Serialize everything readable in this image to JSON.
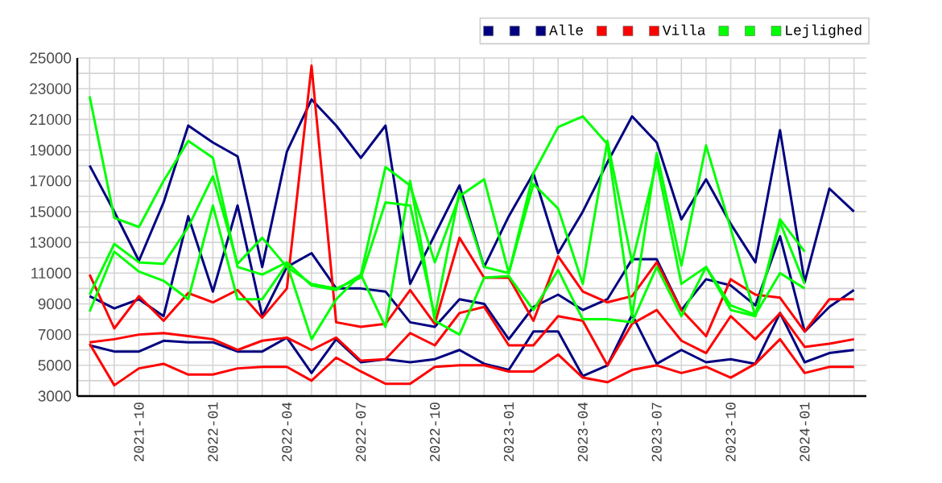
{
  "chart_data": {
    "type": "line",
    "x": [
      "2021-08",
      "2021-09",
      "2021-10",
      "2021-11",
      "2021-12",
      "2022-01",
      "2022-02",
      "2022-03",
      "2022-04",
      "2022-05",
      "2022-06",
      "2022-07",
      "2022-08",
      "2022-09",
      "2022-10",
      "2022-11",
      "2022-12",
      "2023-01",
      "2023-02",
      "2023-03",
      "2023-04",
      "2023-05",
      "2023-06",
      "2023-07",
      "2023-08",
      "2023-09",
      "2023-10",
      "2023-11",
      "2023-12",
      "2024-01",
      "2024-02",
      "2024-03"
    ],
    "series": [
      {
        "color": "#000080",
        "values": [
          18000,
          15000,
          11800,
          15600,
          20600,
          19500,
          18600,
          11400,
          18900,
          22300,
          20600,
          18500,
          20600,
          10300,
          13500,
          16700,
          11400,
          14700,
          17500,
          12300,
          15000,
          18200,
          21200,
          19500,
          14500,
          17100,
          14200,
          11700,
          20300,
          10400,
          16500,
          15000
        ]
      },
      {
        "color": "#000080",
        "values": [
          9500,
          8700,
          9300,
          8200,
          14700,
          9800,
          15400,
          8200,
          11400,
          12300,
          10000,
          10000,
          9800,
          7800,
          7500,
          9300,
          9000,
          6700,
          8800,
          9600,
          8600,
          9300,
          11900,
          11900,
          8600,
          10600,
          10200,
          8900,
          13400,
          7200,
          8800,
          9900
        ]
      },
      {
        "name": "Alle",
        "color": "#000080",
        "values": [
          6300,
          5900,
          5900,
          6600,
          6500,
          6500,
          5900,
          5900,
          6800,
          4500,
          6700,
          5200,
          5400,
          5200,
          5400,
          6000,
          5100,
          4700,
          7200,
          7200,
          4300,
          5000,
          8300,
          5100,
          6000,
          5200,
          5400,
          5100,
          8400,
          5200,
          5800,
          6000
        ]
      },
      {
        "color": "#ff0000",
        "values": [
          10900,
          7400,
          9500,
          7900,
          9700,
          9100,
          9900,
          8100,
          10000,
          24500,
          7800,
          7500,
          7700,
          9900,
          7700,
          13300,
          10700,
          10700,
          7900,
          12100,
          9800,
          9100,
          9500,
          11700,
          8600,
          6900,
          10600,
          9600,
          9400,
          7200,
          9300,
          9300
        ]
      },
      {
        "color": "#ff0000",
        "values": [
          6500,
          6700,
          7000,
          7100,
          6900,
          6700,
          6000,
          6600,
          6800,
          6000,
          6800,
          5300,
          5400,
          7100,
          6300,
          8400,
          8800,
          6300,
          6300,
          8200,
          7900,
          5000,
          7700,
          8600,
          6600,
          5800,
          8200,
          6700,
          8400,
          6200,
          6400,
          6700
        ]
      },
      {
        "name": "Villa",
        "color": "#ff0000",
        "values": [
          6400,
          3700,
          4800,
          5100,
          4400,
          4400,
          4800,
          4900,
          4900,
          4000,
          5500,
          4600,
          3800,
          3800,
          4900,
          5000,
          5000,
          4600,
          4600,
          5700,
          4200,
          3900,
          4700,
          5000,
          4500,
          4900,
          4200,
          5100,
          6700,
          4500,
          4900,
          4900
        ]
      },
      {
        "color": "#00ff00",
        "values": [
          22500,
          14600,
          14000,
          17000,
          19600,
          18500,
          11400,
          10900,
          11700,
          10200,
          9900,
          10900,
          17900,
          16700,
          11700,
          16000,
          17100,
          11000,
          17500,
          20500,
          21200,
          19400,
          8200,
          18800,
          11500,
          19300,
          13900,
          8200,
          14300,
          10300,
          null,
          null
        ]
      },
      {
        "color": "#00ff00",
        "values": [
          9600,
          12900,
          11700,
          11600,
          14000,
          17300,
          11600,
          13300,
          11400,
          10300,
          10000,
          10700,
          15600,
          15400,
          8200,
          16300,
          11400,
          11000,
          16800,
          15200,
          10300,
          19600,
          11700,
          18200,
          10300,
          11400,
          8600,
          8200,
          14500,
          12400,
          null,
          null
        ]
      },
      {
        "name": "Lejlighed",
        "color": "#00ff00",
        "values": [
          8500,
          12400,
          11100,
          10500,
          9300,
          15400,
          9300,
          9300,
          11600,
          6700,
          9300,
          10900,
          7500,
          17000,
          7900,
          7000,
          10700,
          10800,
          8600,
          11200,
          8000,
          8000,
          7800,
          11400,
          8200,
          11400,
          8900,
          8300,
          11000,
          10000,
          null,
          null
        ]
      }
    ],
    "xlim": [
      "2021-07-16",
      "2024-03-16"
    ],
    "xticks": [
      {
        "value": "2021-08",
        "label": null
      },
      {
        "value": "2021-09",
        "label": null
      },
      "2021-10",
      {
        "value": "2021-11",
        "label": null
      },
      {
        "value": "2021-12",
        "label": null
      },
      "2022-01",
      {
        "value": "2022-02",
        "label": null
      },
      {
        "value": "2022-03",
        "label": null
      },
      "2022-04",
      {
        "value": "2022-05",
        "label": null
      },
      {
        "value": "2022-06",
        "label": null
      },
      "2022-07",
      {
        "value": "2022-08",
        "label": null
      },
      {
        "value": "2022-09",
        "label": null
      },
      "2022-10",
      {
        "value": "2022-11",
        "label": null
      },
      {
        "value": "2022-12",
        "label": null
      },
      "2023-01",
      {
        "value": "2023-02",
        "label": null
      },
      {
        "value": "2023-03",
        "label": null
      },
      "2023-04",
      {
        "value": "2023-05",
        "label": null
      },
      {
        "value": "2023-06",
        "label": null
      },
      "2023-07",
      {
        "value": "2023-08",
        "label": null
      },
      {
        "value": "2023-09",
        "label": null
      },
      "2023-10",
      {
        "value": "2023-11",
        "label": null
      },
      {
        "value": "2023-12",
        "label": null
      },
      "2024-01",
      {
        "value": "2024-02",
        "label": null
      },
      {
        "value": "2024-03",
        "label": null
      }
    ],
    "ylim": [
      3000,
      25000
    ],
    "yticks": [
      3000,
      {
        "value": 4000,
        "label": null
      },
      5000,
      {
        "value": 6000,
        "label": null
      },
      7000,
      {
        "value": 8000,
        "label": null
      },
      9000,
      {
        "value": 10000,
        "label": null
      },
      11000,
      {
        "value": 12000,
        "label": null
      },
      13000,
      {
        "value": 14000,
        "label": null
      },
      15000,
      {
        "value": 16000,
        "label": null
      },
      17000,
      {
        "value": 18000,
        "label": null
      },
      19000,
      {
        "value": 20000,
        "label": null
      },
      21000,
      {
        "value": 22000,
        "label": null
      },
      23000,
      {
        "value": 24000,
        "label": null
      },
      25000
    ],
    "grid": true,
    "legend": "top right"
  }
}
